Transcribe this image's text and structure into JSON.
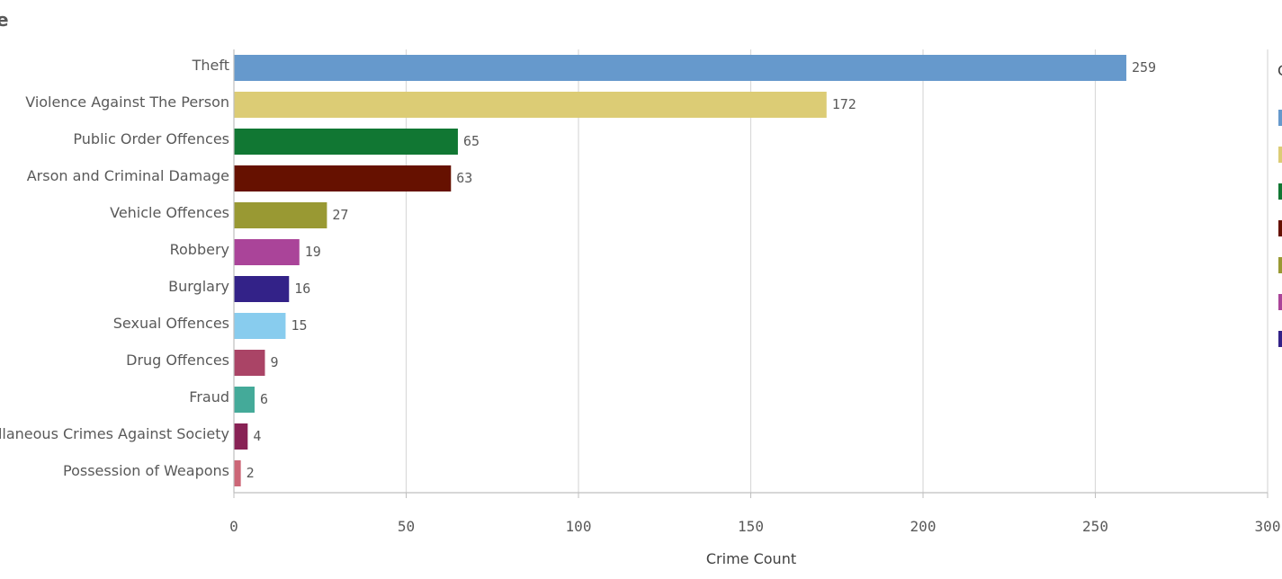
{
  "title_fragment": "e",
  "legend": {
    "title_fragment": "C"
  },
  "chart_data": {
    "type": "bar",
    "orientation": "horizontal",
    "categories": [
      "Theft",
      "Violence Against The Person",
      "Public Order Offences",
      "Arson and Criminal Damage",
      "Vehicle Offences",
      "Robbery",
      "Burglary",
      "Sexual Offences",
      "Drug Offences",
      "Fraud",
      "ellaneous Crimes Against Society",
      "Possession of Weapons"
    ],
    "values": [
      259,
      172,
      65,
      63,
      27,
      19,
      16,
      15,
      9,
      6,
      4,
      2
    ],
    "value_labels": [
      "259",
      "172",
      "65",
      "63",
      "27",
      "19",
      "16",
      "15",
      "9",
      "6",
      "4",
      "2"
    ],
    "colors": [
      "#6699cc",
      "#dccc75",
      "#117733",
      "#661100",
      "#999933",
      "#aa4499",
      "#332288",
      "#88ccee",
      "#aa4466",
      "#44aa99",
      "#882255",
      "#cc6677"
    ],
    "xlabel": "Crime Count",
    "ylabel": "",
    "xlim": [
      0,
      300
    ],
    "xticks": [
      0,
      50,
      100,
      150,
      200,
      250,
      300
    ],
    "xtick_labels": [
      "0",
      "50",
      "100",
      "150",
      "200",
      "250",
      "300"
    ],
    "grid": true,
    "legend_position": "right"
  }
}
